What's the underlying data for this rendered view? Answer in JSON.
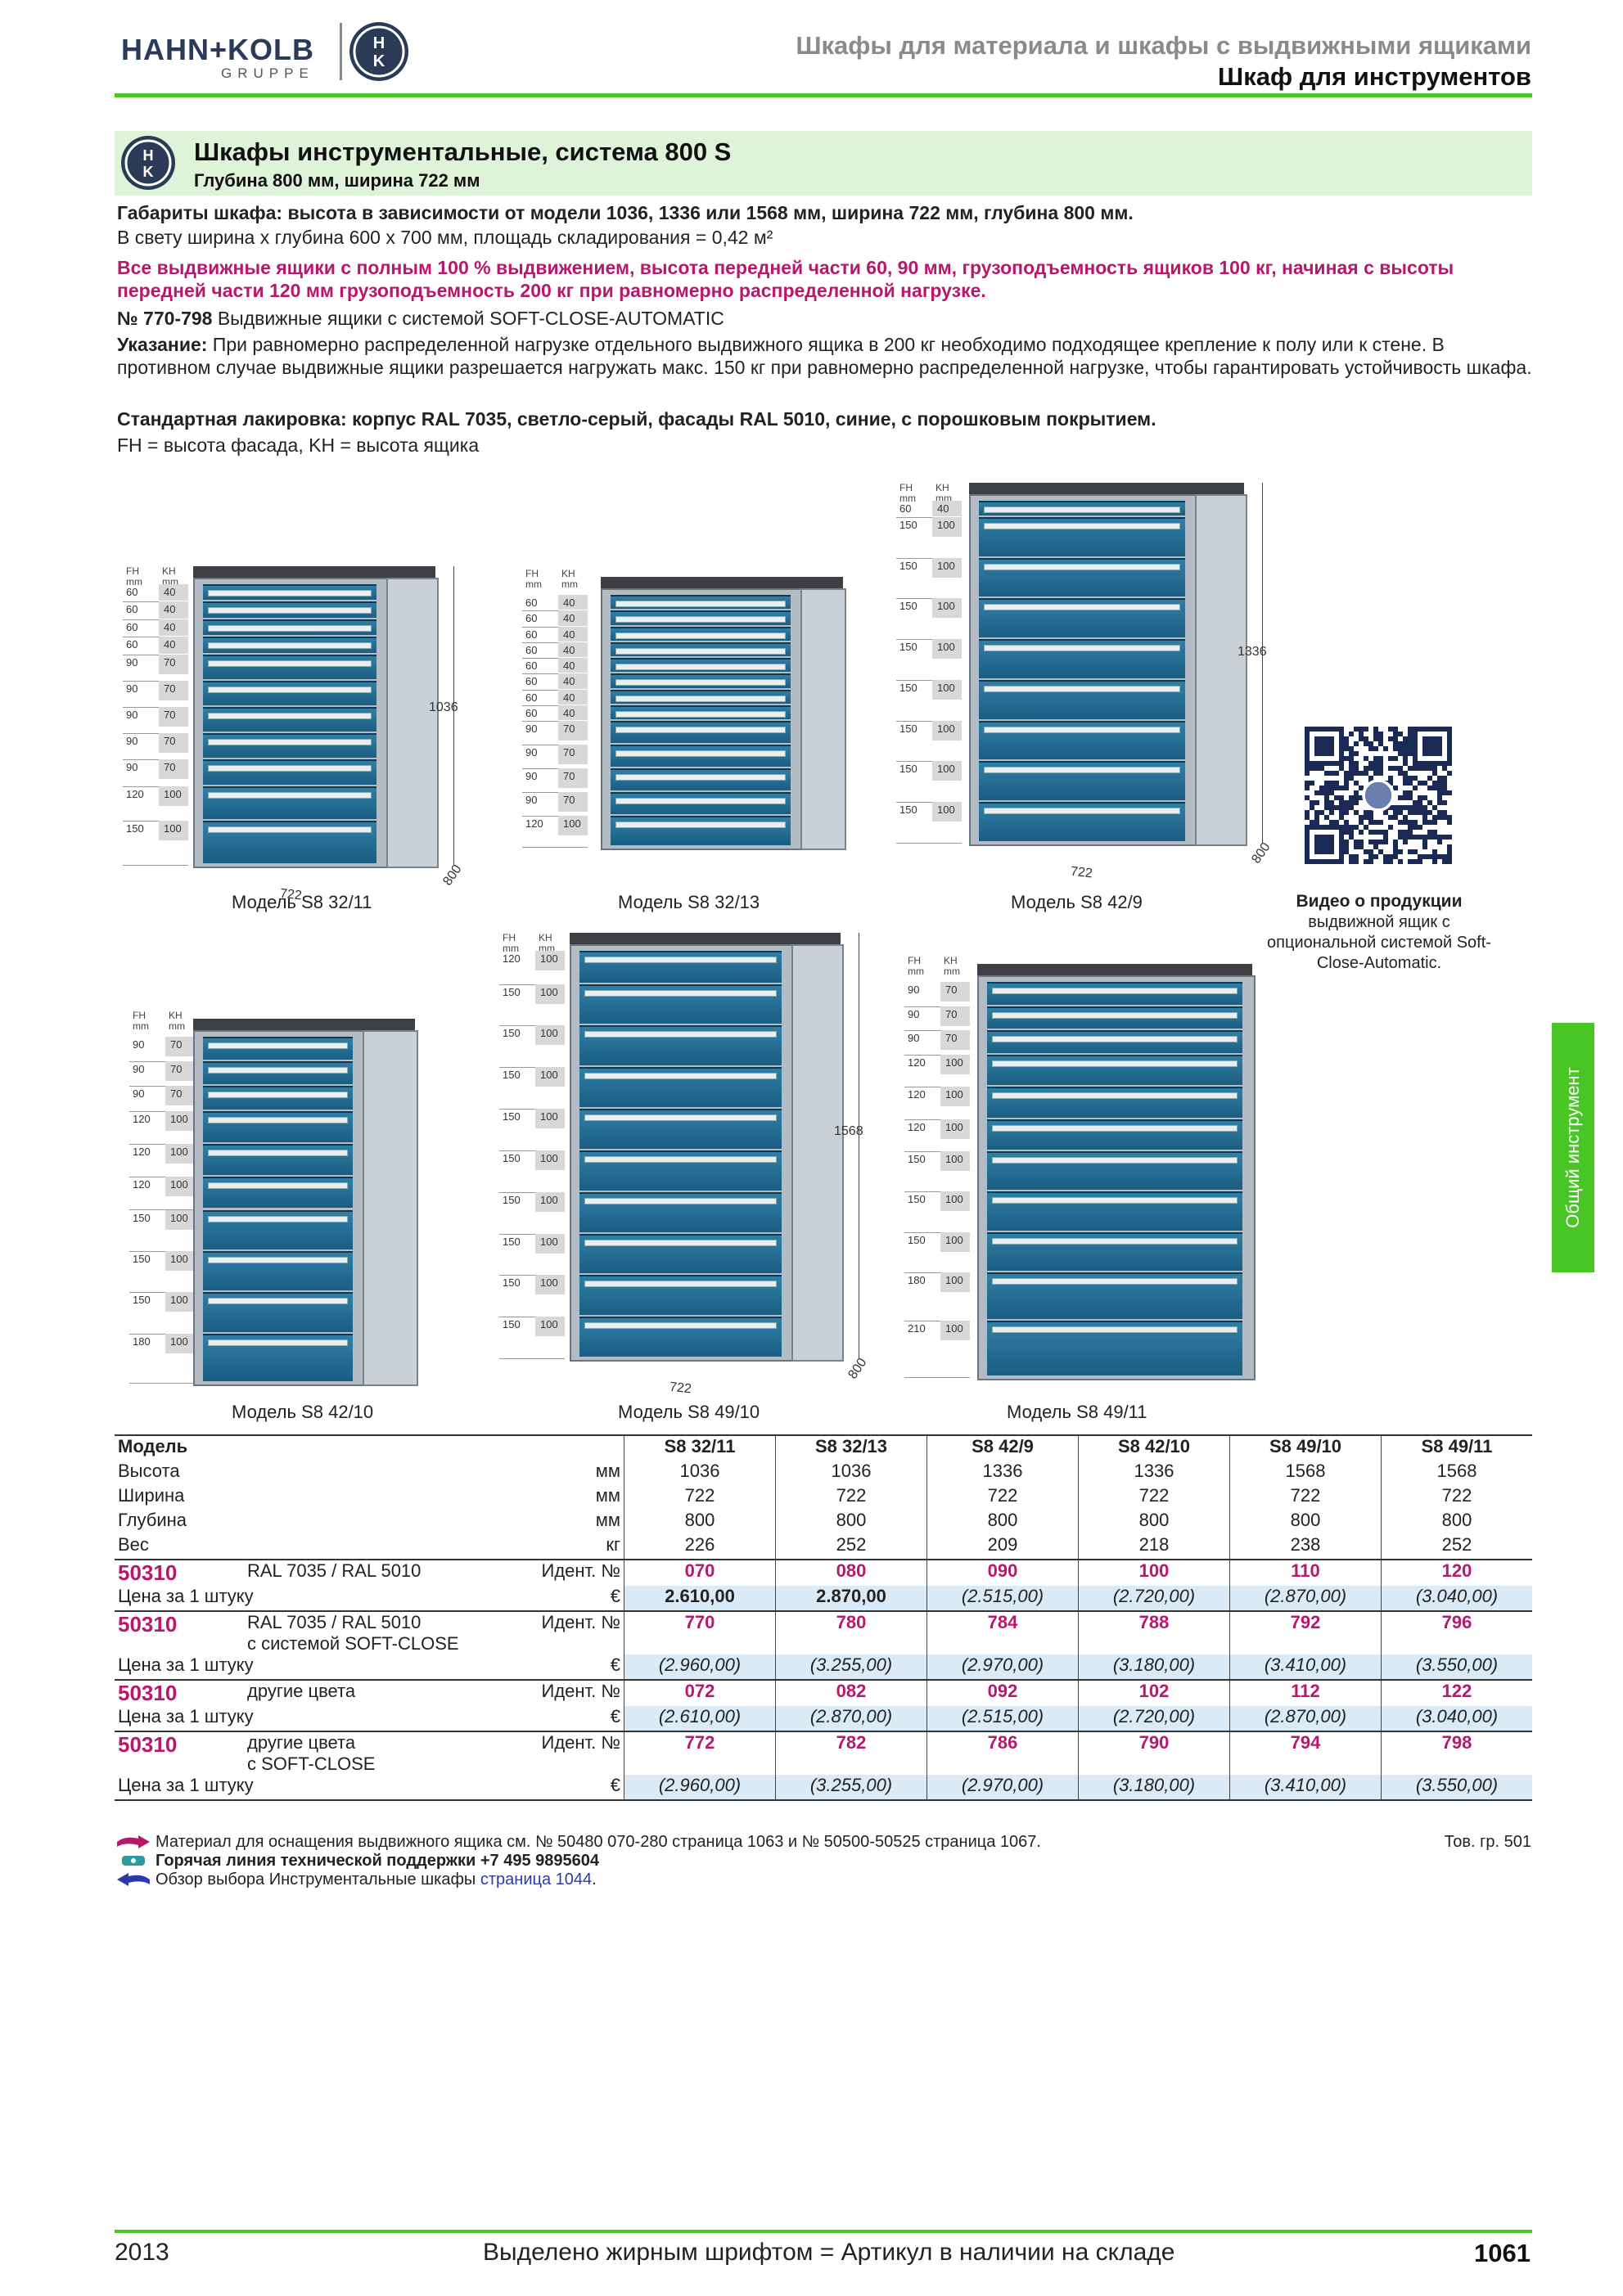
{
  "header": {
    "logo_text": "HAHN+KOLB",
    "logo_sub": "GRUPPE",
    "logo_badge": "H K",
    "line1": "Шкафы для материала и шкафы с выдвижными ящиками",
    "line2": "Шкаф для инструментов"
  },
  "title": {
    "main": "Шкафы инструментальные, система 800 S",
    "sub": "Глубина 800 мм, ширина 722 мм"
  },
  "intro": {
    "p1": "Габариты шкафа: высота в зависимости от модели 1036, 1336 или 1568 мм, ширина 722 мм, глубина 800 мм.",
    "p2": "В свету ширина x глубина 600 x 700 мм, площадь складирования = 0,42 м²",
    "p3": "Все выдвижные ящики с полным 100 % выдвижением, высота передней части 60, 90 мм, грузоподъемность ящиков 100 кг, начиная с высоты передней части 120 мм грузоподъемность 200 кг при равномерно распределенной нагрузке.",
    "p4_bold": "№ 770-798",
    "p4_text": " Выдвижные ящики с системой ",
    "p4_tail": "SOFT-CLOSE-AUTOMATIC",
    "p5_bold": "Указание:",
    "p5_text": " При равномерно распределенной нагрузке отдельного выдвижного ящика в 200 кг необходимо подходящее крепление к полу или к стене. В противном случае выдвижные ящики разрешается нагружать макс. 150 кг при равномерно распределенной нагрузке, чтобы гарантировать устойчивость шкафа.",
    "p6": "Стандартная лакировка: корпус RAL 7035, светло-серый, фасады  RAL 5010, синие, с порошковым покрытием.",
    "p7": "FH = высота фасада, KH = высота ящика"
  },
  "fh_header": [
    "FH",
    "KH",
    "mm",
    "mm"
  ],
  "cabinets": [
    {
      "caption": "Модель S8 32/11",
      "height": "1036",
      "width": "722",
      "depth": "800",
      "rows": [
        [
          "60",
          "40"
        ],
        [
          "60",
          "40"
        ],
        [
          "60",
          "40"
        ],
        [
          "60",
          "40"
        ],
        [
          "90",
          "70"
        ],
        [
          "90",
          "70"
        ],
        [
          "90",
          "70"
        ],
        [
          "90",
          "70"
        ],
        [
          "90",
          "70"
        ],
        [
          "120",
          "100"
        ],
        [
          "150",
          "100"
        ]
      ]
    },
    {
      "caption": "Модель S8 32/13",
      "rows": [
        [
          "60",
          "40"
        ],
        [
          "60",
          "40"
        ],
        [
          "60",
          "40"
        ],
        [
          "60",
          "40"
        ],
        [
          "60",
          "40"
        ],
        [
          "60",
          "40"
        ],
        [
          "60",
          "40"
        ],
        [
          "60",
          "40"
        ],
        [
          "90",
          "70"
        ],
        [
          "90",
          "70"
        ],
        [
          "90",
          "70"
        ],
        [
          "90",
          "70"
        ],
        [
          "120",
          "100"
        ]
      ]
    },
    {
      "caption": "Модель S8 42/9",
      "height": "1336",
      "width": "722",
      "depth": "800",
      "rows": [
        [
          "60",
          "40"
        ],
        [
          "150",
          "100"
        ],
        [
          "150",
          "100"
        ],
        [
          "150",
          "100"
        ],
        [
          "150",
          "100"
        ],
        [
          "150",
          "100"
        ],
        [
          "150",
          "100"
        ],
        [
          "150",
          "100"
        ],
        [
          "150",
          "100"
        ]
      ]
    },
    {
      "caption": "Модель S8 42/10",
      "rows": [
        [
          "90",
          "70"
        ],
        [
          "90",
          "70"
        ],
        [
          "90",
          "70"
        ],
        [
          "120",
          "100"
        ],
        [
          "120",
          "100"
        ],
        [
          "120",
          "100"
        ],
        [
          "150",
          "100"
        ],
        [
          "150",
          "100"
        ],
        [
          "150",
          "100"
        ],
        [
          "180",
          "100"
        ]
      ]
    },
    {
      "caption": "Модель S8 49/10",
      "height": "1568",
      "width": "722",
      "depth": "800",
      "rows": [
        [
          "120",
          "100"
        ],
        [
          "150",
          "100"
        ],
        [
          "150",
          "100"
        ],
        [
          "150",
          "100"
        ],
        [
          "150",
          "100"
        ],
        [
          "150",
          "100"
        ],
        [
          "150",
          "100"
        ],
        [
          "150",
          "100"
        ],
        [
          "150",
          "100"
        ],
        [
          "150",
          "100"
        ]
      ]
    },
    {
      "caption": "Модель S8 49/11",
      "rows": [
        [
          "90",
          "70"
        ],
        [
          "90",
          "70"
        ],
        [
          "90",
          "70"
        ],
        [
          "120",
          "100"
        ],
        [
          "120",
          "100"
        ],
        [
          "120",
          "100"
        ],
        [
          "150",
          "100"
        ],
        [
          "150",
          "100"
        ],
        [
          "150",
          "100"
        ],
        [
          "180",
          "100"
        ],
        [
          "210",
          "100"
        ]
      ]
    }
  ],
  "video": {
    "title": "Видео о продукции",
    "desc": "выдвижной ящик с опциональной системой Soft-Close-Automatic."
  },
  "side_tab": "Общий инструмент",
  "table": {
    "models": [
      "S8 32/11",
      "S8 32/13",
      "S8 42/9",
      "S8 42/10",
      "S8 49/10",
      "S8 49/11"
    ],
    "label_model": "Модель",
    "specs": [
      {
        "label": "Высота",
        "unit": "мм",
        "values": [
          "1036",
          "1036",
          "1336",
          "1336",
          "1568",
          "1568"
        ]
      },
      {
        "label": "Ширина",
        "unit": "мм",
        "values": [
          "722",
          "722",
          "722",
          "722",
          "722",
          "722"
        ]
      },
      {
        "label": "Глубина",
        "unit": "мм",
        "values": [
          "800",
          "800",
          "800",
          "800",
          "800",
          "800"
        ]
      },
      {
        "label": "Вес",
        "unit": "кг",
        "values": [
          "226",
          "252",
          "209",
          "218",
          "238",
          "252"
        ]
      }
    ],
    "groups": [
      {
        "article": "50310",
        "desc1": "RAL 7035 / RAL 5010",
        "desc2": "",
        "id_label": "Идент. №",
        "ids": [
          "070",
          "080",
          "090",
          "100",
          "110",
          "120"
        ],
        "price_label": "Цена за 1 штуку",
        "currency": "€",
        "prices": [
          "2.610,00",
          "2.870,00",
          "(2.515,00)",
          "(2.720,00)",
          "(2.870,00)",
          "(3.040,00)"
        ],
        "bold": [
          true,
          true,
          false,
          false,
          false,
          false
        ]
      },
      {
        "article": "50310",
        "desc1": "RAL 7035 / RAL 5010",
        "desc2": "с системой SOFT-CLOSE",
        "id_label": "Идент. №",
        "ids": [
          "770",
          "780",
          "784",
          "788",
          "792",
          "796"
        ],
        "price_label": "Цена за 1 штуку",
        "currency": "€",
        "prices": [
          "(2.960,00)",
          "(3.255,00)",
          "(2.970,00)",
          "(3.180,00)",
          "(3.410,00)",
          "(3.550,00)"
        ],
        "bold": [
          false,
          false,
          false,
          false,
          false,
          false
        ]
      },
      {
        "article": "50310",
        "desc1": "другие цвета",
        "desc2": "",
        "id_label": "Идент. №",
        "ids": [
          "072",
          "082",
          "092",
          "102",
          "112",
          "122"
        ],
        "price_label": "Цена за 1 штуку",
        "currency": "€",
        "prices": [
          "(2.610,00)",
          "(2.870,00)",
          "(2.515,00)",
          "(2.720,00)",
          "(2.870,00)",
          "(3.040,00)"
        ],
        "bold": [
          false,
          false,
          false,
          false,
          false,
          false
        ]
      },
      {
        "article": "50310",
        "desc1": "другие цвета",
        "desc2": "с SOFT-CLOSE",
        "id_label": "Идент. №",
        "ids": [
          "772",
          "782",
          "786",
          "790",
          "794",
          "798"
        ],
        "price_label": "Цена за 1 штуку",
        "currency": "€",
        "prices": [
          "(2.960,00)",
          "(3.255,00)",
          "(2.970,00)",
          "(3.180,00)",
          "(3.410,00)",
          "(3.550,00)"
        ],
        "bold": [
          false,
          false,
          false,
          false,
          false,
          false
        ]
      }
    ]
  },
  "notes": {
    "n1": "Материал для оснащения выдвижного ящика см. № 50480 070-280 страница 1063 и № 50500-50525 страница 1067.",
    "n1_right": "Тов. гр. 501",
    "n2": "Горячая линия технической поддержки +7 495 9895604",
    "n3_text": "Обзор выбора Инструментальные шкафы ",
    "n3_link": "страница 1044",
    "n3_tail": "."
  },
  "footer": {
    "year": "2013",
    "middle": "Выделено жирным шрифтом = Артикул в наличии на складе",
    "page": "1061"
  },
  "colors": {
    "accent": "#4ac526",
    "magenta": "#b8176e",
    "drawer": "#1b5d82",
    "body": "#b3bcc5"
  }
}
